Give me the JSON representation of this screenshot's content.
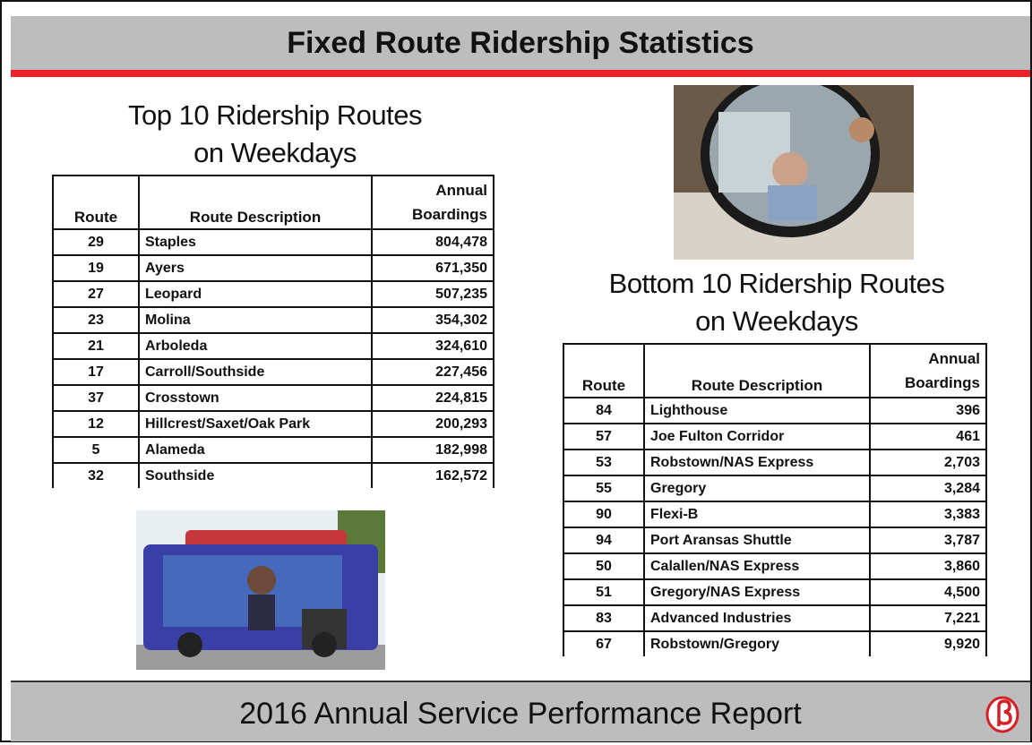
{
  "header": {
    "title": "Fixed Route Ridership Statistics"
  },
  "top": {
    "title": [
      "Top 10 Ridership Routes",
      "on Weekdays"
    ],
    "table": {
      "columns": [
        "Route",
        "Route Description",
        "Annual Boardings"
      ],
      "rows": [
        [
          "29",
          "Staples",
          "804,478"
        ],
        [
          "19",
          "Ayers",
          "671,350"
        ],
        [
          "27",
          "Leopard",
          "507,235"
        ],
        [
          "23",
          "Molina",
          "354,302"
        ],
        [
          "21",
          "Arboleda",
          "324,610"
        ],
        [
          "17",
          "Carroll/Southside",
          "227,456"
        ],
        [
          "37",
          "Crosstown",
          "224,815"
        ],
        [
          "12",
          "Hillcrest/Saxet/Oak Park",
          "200,293"
        ],
        [
          "5",
          "Alameda",
          "182,998"
        ],
        [
          "32",
          "Southside",
          "162,572"
        ]
      ]
    }
  },
  "bottom": {
    "title": [
      "Bottom 10 Ridership Routes",
      "on Weekdays"
    ],
    "table": {
      "columns": [
        "Route",
        "Route Description",
        "Annual Boardings"
      ],
      "rows": [
        [
          "84",
          "Lighthouse",
          "396"
        ],
        [
          "57",
          "Joe Fulton Corridor",
          "461"
        ],
        [
          "53",
          "Robstown/NAS Express",
          "2,703"
        ],
        [
          "55",
          "Gregory",
          "3,284"
        ],
        [
          "90",
          "Flexi-B",
          "3,383"
        ],
        [
          "94",
          "Port Aransas Shuttle",
          "3,787"
        ],
        [
          "50",
          "Calallen/NAS Express",
          "3,860"
        ],
        [
          "51",
          "Gregory/NAS Express",
          "4,500"
        ],
        [
          "83",
          "Advanced Industries",
          "7,221"
        ],
        [
          "67",
          "Robstown/Gregory",
          "9,920"
        ]
      ]
    }
  },
  "footer": {
    "title": "2016 Annual Service Performance Report"
  }
}
